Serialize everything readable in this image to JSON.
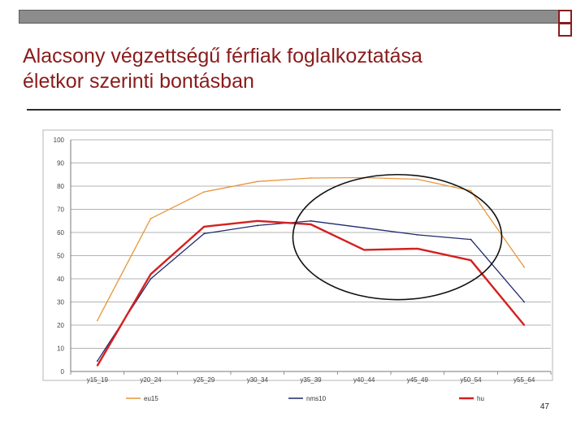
{
  "slide": {
    "title_line1": "Alacsony végzettségű férfiak foglalkoztatása",
    "title_line2": "életkor szerinti bontásban",
    "page_number": "47",
    "accent_color": "#8a1c1c"
  },
  "chart_data": {
    "type": "line",
    "categories": [
      "y15_19",
      "y20_24",
      "y25_29",
      "y30_34",
      "y35_39",
      "y40_44",
      "y45_49",
      "y50_54",
      "y55_64"
    ],
    "ylim": [
      0,
      100
    ],
    "yticks": [
      0,
      10,
      20,
      30,
      40,
      50,
      60,
      70,
      80,
      90,
      100
    ],
    "grid": true,
    "legend_position": "bottom",
    "annotation": "ellipse highlighting y35_39 to y50_54",
    "series": [
      {
        "name": "eu15",
        "color": "#e8963c",
        "values": [
          22,
          66,
          77.5,
          82,
          83.5,
          83.7,
          83,
          78,
          45
        ]
      },
      {
        "name": "nms10",
        "color": "#1f2a6b",
        "values": [
          4.5,
          40,
          59.5,
          63,
          65,
          62,
          59,
          57,
          30
        ]
      },
      {
        "name": "hu",
        "color": "#d42020",
        "values": [
          2.5,
          42,
          62.5,
          65,
          63.5,
          52.5,
          53,
          48,
          20
        ]
      }
    ]
  }
}
